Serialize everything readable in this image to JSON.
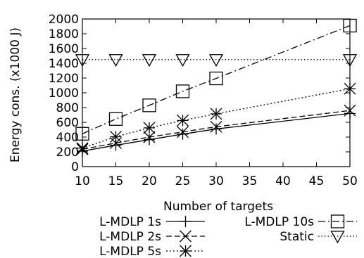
{
  "chart_data": {
    "type": "line",
    "title": "",
    "xlabel": "Number of targets",
    "ylabel": "Energy cons. (x1000 J)",
    "x": [
      10,
      15,
      20,
      25,
      30,
      50
    ],
    "xlim": [
      10,
      50
    ],
    "ylim": [
      0,
      2000
    ],
    "xticks": [
      10,
      15,
      20,
      25,
      30,
      35,
      40,
      45,
      50
    ],
    "yticks": [
      0,
      200,
      400,
      600,
      800,
      1000,
      1200,
      1400,
      1600,
      1800,
      2000
    ],
    "grid": false,
    "legend_position": "bottom",
    "series": [
      {
        "name": "L-MDLP 1s",
        "marker": "plus",
        "dash": "solid",
        "values": [
          210,
          290,
          365,
          440,
          510,
          720
        ]
      },
      {
        "name": "L-MDLP 2s",
        "marker": "x",
        "dash": "dashed",
        "values": [
          235,
          320,
          400,
          470,
          540,
          760
        ]
      },
      {
        "name": "L-MDLP 5s",
        "marker": "star",
        "dash": "dotted",
        "values": [
          250,
          405,
          525,
          625,
          715,
          1055
        ]
      },
      {
        "name": "L-MDLP 10s",
        "marker": "square",
        "dash": "dash-dot",
        "values": [
          445,
          645,
          830,
          1020,
          1195,
          1910
        ]
      },
      {
        "name": "Static",
        "marker": "triangle",
        "dash": "fine-dotted",
        "values": [
          1450,
          1450,
          1450,
          1450,
          1450,
          1450
        ]
      }
    ]
  }
}
